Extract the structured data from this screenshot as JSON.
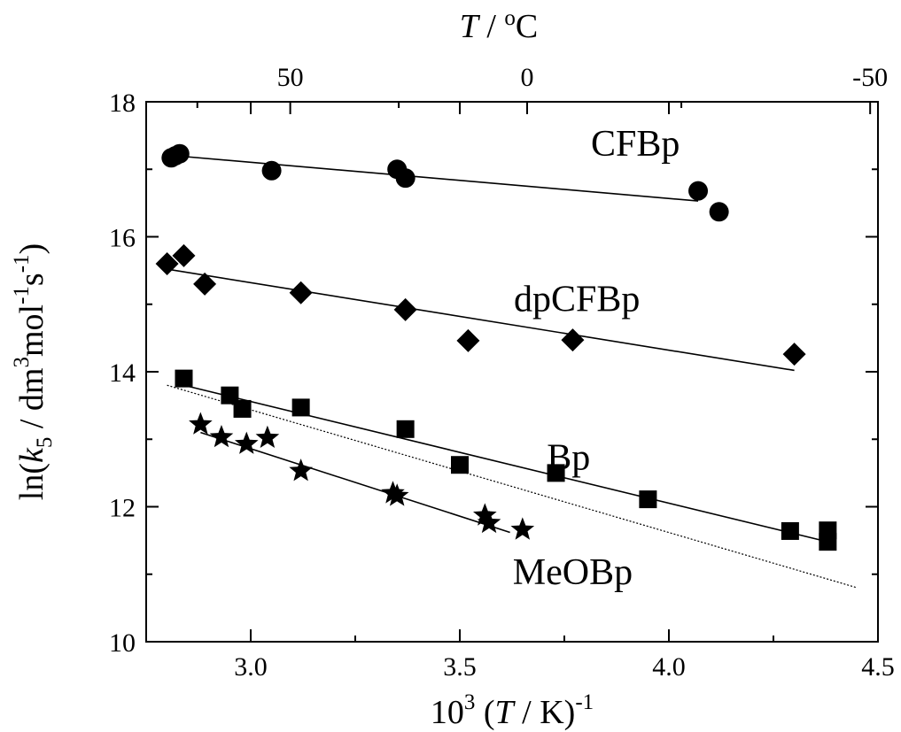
{
  "chart_data": {
    "type": "scatter",
    "title": "",
    "xlabel": {
      "base": "10",
      "base_sup": "3",
      "mid": " (",
      "var": "T",
      "unit": " / K)",
      "exp": "-1"
    },
    "ylabel": {
      "prefix": "ln(",
      "var": "k",
      "sub": "5",
      "unit1": " / dm",
      "sup1": "3",
      "unit2": "mol",
      "sup2": "-1",
      "unit3": "s",
      "sup3": "-1",
      "suffix": ")"
    },
    "top_xlabel": {
      "var": "T",
      "sep": " / ",
      "deg": "o",
      "unit": "C"
    },
    "xlim": [
      2.75,
      4.5
    ],
    "ylim": [
      10,
      18
    ],
    "xticks": [
      3.0,
      3.5,
      4.0,
      4.5
    ],
    "xtick_labels": [
      "3.0",
      "3.5",
      "4.0",
      "4.5"
    ],
    "yticks": [
      10,
      12,
      14,
      16,
      18
    ],
    "ytick_labels": [
      "10",
      "12",
      "14",
      "16",
      "18"
    ],
    "top_ticks_celsius": [
      50,
      0,
      -50
    ],
    "top_tick_labels": [
      "50",
      "0",
      "-50"
    ],
    "grid": false,
    "series": [
      {
        "name": "CFBp",
        "marker": "circle",
        "points": [
          [
            2.81,
            17.17
          ],
          [
            2.82,
            17.2
          ],
          [
            2.83,
            17.23
          ],
          [
            3.05,
            16.98
          ],
          [
            3.35,
            17.0
          ],
          [
            3.37,
            16.87
          ],
          [
            4.07,
            16.68
          ],
          [
            4.12,
            16.37
          ]
        ],
        "fit": [
          [
            2.82,
            17.2
          ],
          [
            4.07,
            16.53
          ]
        ]
      },
      {
        "name": "dpCFBp",
        "marker": "diamond",
        "points": [
          [
            2.8,
            15.6
          ],
          [
            2.84,
            15.72
          ],
          [
            2.89,
            15.3
          ],
          [
            3.12,
            15.17
          ],
          [
            3.37,
            14.92
          ],
          [
            3.52,
            14.46
          ],
          [
            3.77,
            14.47
          ],
          [
            4.3,
            14.26
          ]
        ],
        "fit": [
          [
            2.8,
            15.52
          ],
          [
            4.3,
            14.02
          ]
        ]
      },
      {
        "name": "Bp",
        "marker": "square",
        "points": [
          [
            2.84,
            13.9
          ],
          [
            2.95,
            13.65
          ],
          [
            2.98,
            13.45
          ],
          [
            3.12,
            13.47
          ],
          [
            3.37,
            13.15
          ],
          [
            3.5,
            12.62
          ],
          [
            3.73,
            12.5
          ],
          [
            3.95,
            12.11
          ],
          [
            4.29,
            11.64
          ],
          [
            4.38,
            11.65
          ],
          [
            4.38,
            11.48
          ]
        ],
        "fit": [
          [
            2.84,
            13.8
          ],
          [
            4.38,
            11.48
          ]
        ]
      },
      {
        "name": "MeOBp",
        "marker": "star",
        "points": [
          [
            2.88,
            13.22
          ],
          [
            2.93,
            13.03
          ],
          [
            2.99,
            12.93
          ],
          [
            3.04,
            13.02
          ],
          [
            3.12,
            12.53
          ],
          [
            3.34,
            12.2
          ],
          [
            3.35,
            12.16
          ],
          [
            3.56,
            11.87
          ],
          [
            3.57,
            11.76
          ],
          [
            3.65,
            11.66
          ]
        ],
        "fit": [
          [
            2.88,
            13.1
          ],
          [
            3.62,
            11.62
          ]
        ]
      }
    ],
    "reference_line": [
      [
        2.8,
        13.8
      ],
      [
        4.45,
        10.8
      ]
    ],
    "annotations": [
      {
        "text": "CFBp",
        "x": 3.92,
        "y": 17.2
      },
      {
        "text": "dpCFBp",
        "x": 3.78,
        "y": 14.9
      },
      {
        "text": "Bp",
        "x": 3.76,
        "y": 12.55
      },
      {
        "text": "MeOBp",
        "x": 3.77,
        "y": 10.85
      }
    ]
  }
}
